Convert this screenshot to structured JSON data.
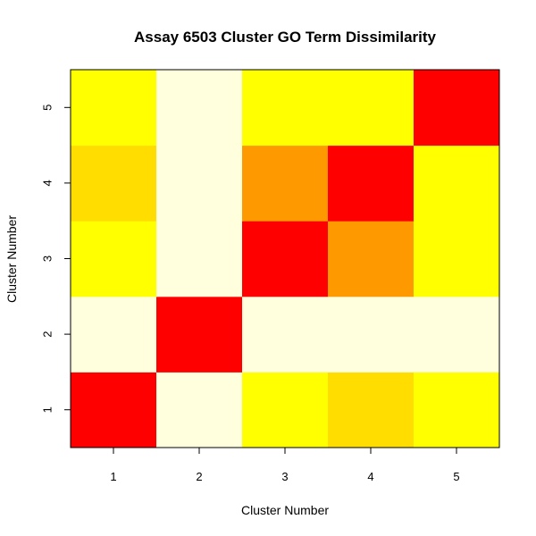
{
  "chart_data": {
    "type": "heatmap",
    "title": "Assay 6503 Cluster GO Term Dissimilarity",
    "xlabel": "Cluster Number",
    "ylabel": "Cluster Number",
    "x_categories": [
      "1",
      "2",
      "3",
      "4",
      "5"
    ],
    "y_categories": [
      "1",
      "2",
      "3",
      "4",
      "5"
    ],
    "color_scale": [
      "#FF0000",
      "#FF9900",
      "#FFDD00",
      "#FFFF00",
      "#FFFFDD"
    ],
    "color_scale_note": "heat colors from low (red) to high (pale yellow)",
    "cells": [
      {
        "x": "1",
        "y": "1",
        "level": 0
      },
      {
        "x": "2",
        "y": "1",
        "level": 4
      },
      {
        "x": "3",
        "y": "1",
        "level": 3
      },
      {
        "x": "4",
        "y": "1",
        "level": 2
      },
      {
        "x": "5",
        "y": "1",
        "level": 3
      },
      {
        "x": "1",
        "y": "2",
        "level": 4
      },
      {
        "x": "2",
        "y": "2",
        "level": 0
      },
      {
        "x": "3",
        "y": "2",
        "level": 4
      },
      {
        "x": "4",
        "y": "2",
        "level": 4
      },
      {
        "x": "5",
        "y": "2",
        "level": 4
      },
      {
        "x": "1",
        "y": "3",
        "level": 3
      },
      {
        "x": "2",
        "y": "3",
        "level": 4
      },
      {
        "x": "3",
        "y": "3",
        "level": 0
      },
      {
        "x": "4",
        "y": "3",
        "level": 1
      },
      {
        "x": "5",
        "y": "3",
        "level": 3
      },
      {
        "x": "1",
        "y": "4",
        "level": 2
      },
      {
        "x": "2",
        "y": "4",
        "level": 4
      },
      {
        "x": "3",
        "y": "4",
        "level": 1
      },
      {
        "x": "4",
        "y": "4",
        "level": 0
      },
      {
        "x": "5",
        "y": "4",
        "level": 3
      },
      {
        "x": "1",
        "y": "5",
        "level": 3
      },
      {
        "x": "2",
        "y": "5",
        "level": 4
      },
      {
        "x": "3",
        "y": "5",
        "level": 3
      },
      {
        "x": "4",
        "y": "5",
        "level": 3
      },
      {
        "x": "5",
        "y": "5",
        "level": 0
      }
    ],
    "grid": false,
    "legend": "none"
  }
}
